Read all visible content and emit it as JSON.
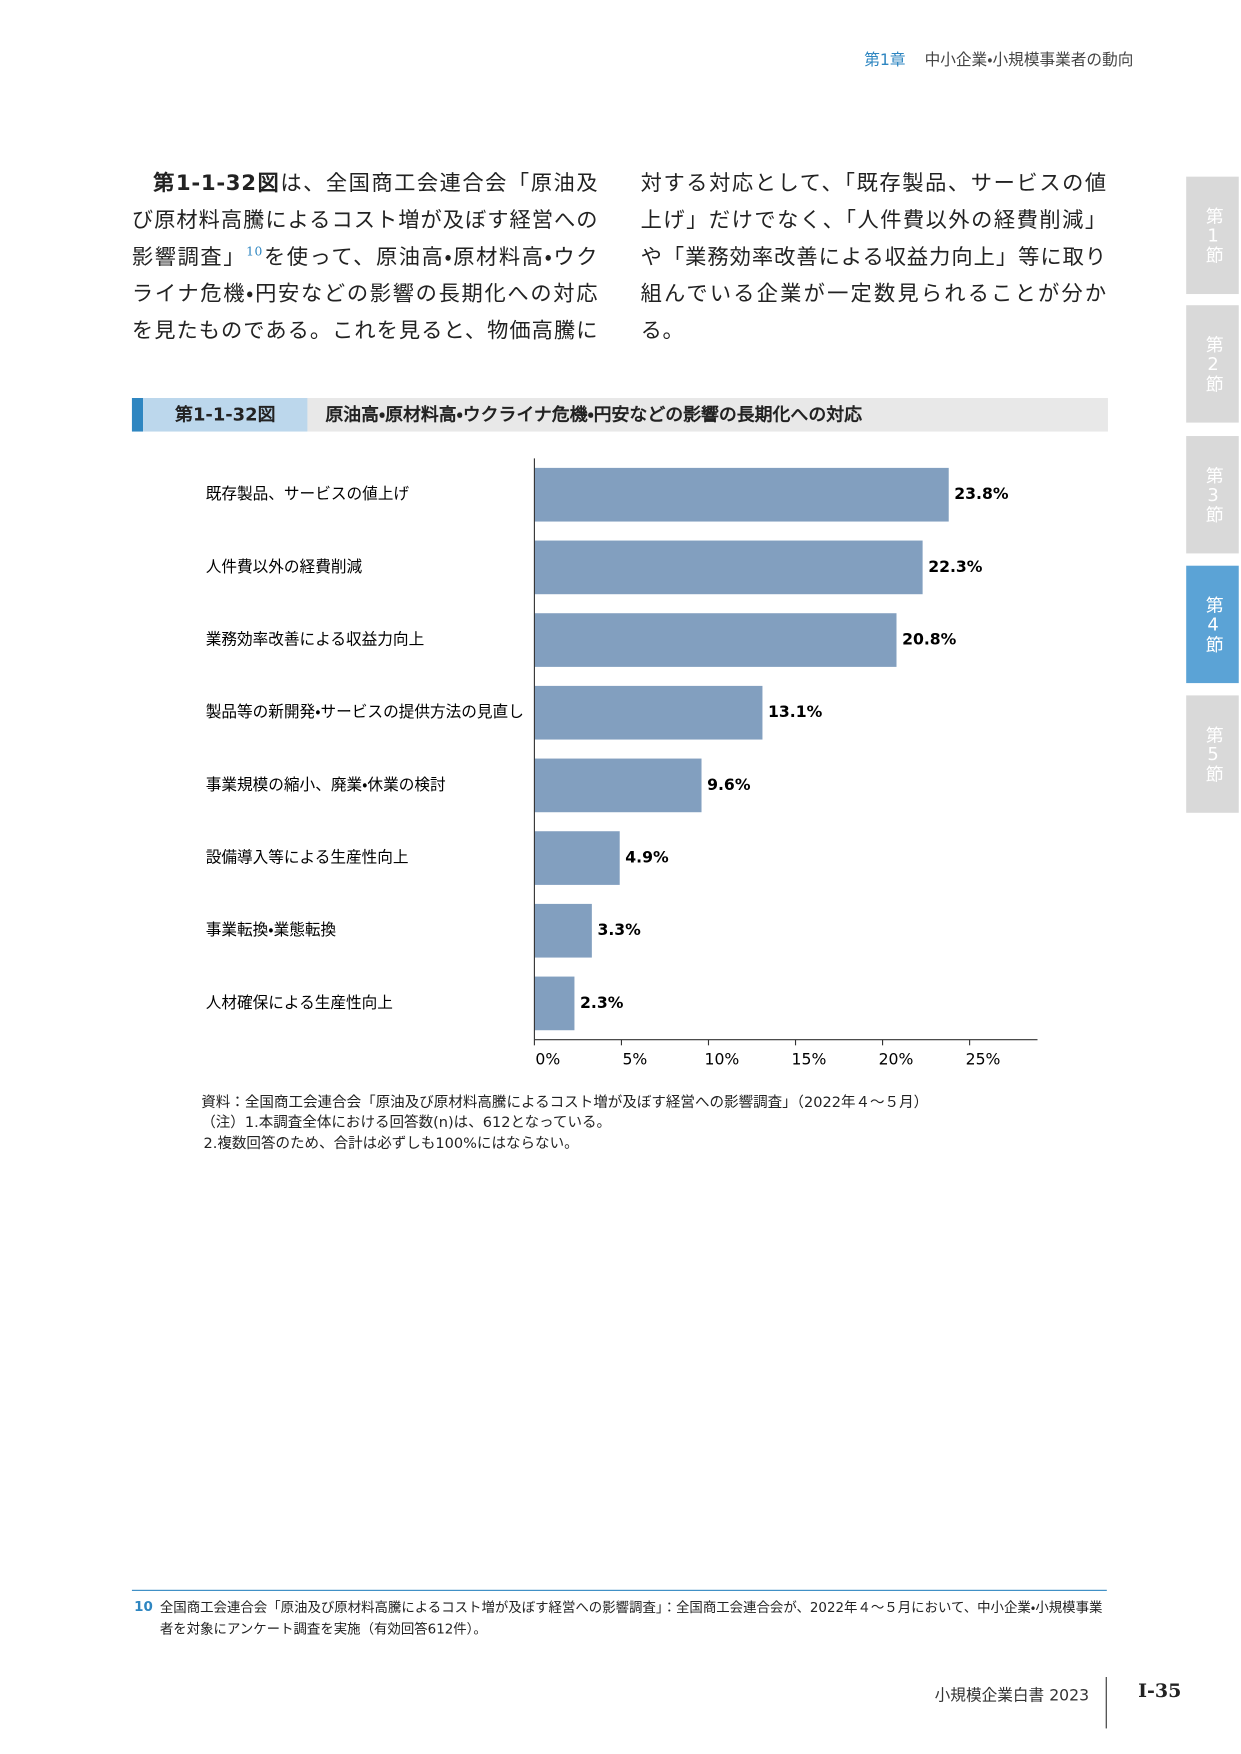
{
  "header": {
    "chapter": "第1章",
    "title": "中小企業・小規模事業者の動向"
  },
  "side_tabs": [
    "第1節",
    "第2節",
    "第3節",
    "第4節",
    "第5節"
  ],
  "body": {
    "figure_ref": "第1-1-32図",
    "text1": "は、全国商工会連合会「原油及び原材料高騰によるコスト増が及ぼす経営への影響調査」",
    "footnote_mark": "10",
    "text2": "を使って、原油高・原材料高・ウクライナ危機・円安などの影響の長期化への対応を見たものである。これを見ると、物価高騰に対する対応として、「既存製品、サービスの値上げ」だけでなく、「人件費以外の経費削減」や「業務効率改善による収益力向上」等に取り組んでいる企業が一定数見られることが分かる。"
  },
  "figure": {
    "number": "第1-1-32図",
    "title": "原油高・原材料高・ウクライナ危機・円安などの影響の長期化への対応"
  },
  "chart_data": {
    "type": "bar",
    "orientation": "horizontal",
    "color": "#829fbf",
    "categories": [
      "既存製品、サービスの値上げ",
      "人件費以外の経費削減",
      "業務効率改善による収益力向上",
      "製品等の新開発・サービスの提供方法の見直し",
      "事業規模の縮小、廃業・休業の検討",
      "設備導入等による生産性向上",
      "事業転換・業態転換",
      "人材確保による生産性向上"
    ],
    "values": [
      23.8,
      22.3,
      20.8,
      13.1,
      9.6,
      4.9,
      3.3,
      2.3
    ],
    "value_labels": [
      "23.8%",
      "22.3%",
      "20.8%",
      "13.1%",
      "9.6%",
      "4.9%",
      "3.3%",
      "2.3%"
    ],
    "xlim": [
      0,
      28.9
    ],
    "xticks": [
      {
        "value": 0,
        "label": "0%"
      },
      {
        "value": 5,
        "label": "5%"
      },
      {
        "value": 10,
        "label": "10%"
      },
      {
        "value": 15,
        "label": "15%"
      },
      {
        "value": 20,
        "label": "20%"
      },
      {
        "value": 25,
        "label": "25%"
      }
    ]
  },
  "notes": [
    "資料：全国商工会連合会「原油及び原材料高騰によるコスト増が及ぼす経営への影響調査」（2022年４～５月）",
    "（注）1.本調査全体における回答数(n)は、612となっている。",
    "2.複数回答のため、合計は必ずしも100%にはならない。"
  ],
  "footnote": {
    "number": "10",
    "text": "全国商工会連合会「原油及び原材料高騰によるコスト増が及ぼす経営への影響調査」：全国商工会連合会が、2022年４～５月において、中小企業・小規模事業者を対象にアンケート調査を実施（有効回答612件）。"
  },
  "footer": {
    "book": "小規模企業白書",
    "year": "2023",
    "page": "Ⅰ-35"
  }
}
